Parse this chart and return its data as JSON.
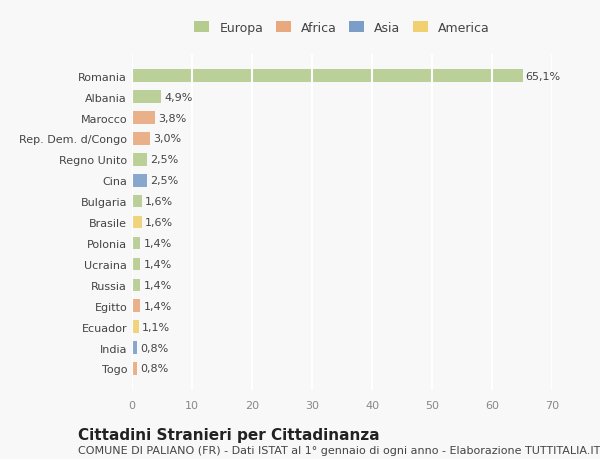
{
  "countries": [
    "Romania",
    "Albania",
    "Marocco",
    "Rep. Dem. d/Congo",
    "Regno Unito",
    "Cina",
    "Bulgaria",
    "Brasile",
    "Polonia",
    "Ucraina",
    "Russia",
    "Egitto",
    "Ecuador",
    "India",
    "Togo"
  ],
  "values": [
    65.1,
    4.9,
    3.8,
    3.0,
    2.5,
    2.5,
    1.6,
    1.6,
    1.4,
    1.4,
    1.4,
    1.4,
    1.1,
    0.8,
    0.8
  ],
  "labels": [
    "65,1%",
    "4,9%",
    "3,8%",
    "3,0%",
    "2,5%",
    "2,5%",
    "1,6%",
    "1,6%",
    "1,4%",
    "1,4%",
    "1,4%",
    "1,4%",
    "1,1%",
    "0,8%",
    "0,8%"
  ],
  "continents": [
    "Europa",
    "Europa",
    "Africa",
    "Africa",
    "Europa",
    "Asia",
    "Europa",
    "America",
    "Europa",
    "Europa",
    "Europa",
    "Africa",
    "America",
    "Asia",
    "Africa"
  ],
  "continent_colors": {
    "Europa": "#b5cc8e",
    "Africa": "#e8a97e",
    "Asia": "#7b9ec9",
    "America": "#f0d070"
  },
  "legend_order": [
    "Europa",
    "Africa",
    "Asia",
    "America"
  ],
  "title": "Cittadini Stranieri per Cittadinanza",
  "subtitle": "COMUNE DI PALIANO (FR) - Dati ISTAT al 1° gennaio di ogni anno - Elaborazione TUTTITALIA.IT",
  "xlim": [
    0,
    70
  ],
  "xticks": [
    0,
    10,
    20,
    30,
    40,
    50,
    60,
    70
  ],
  "background_color": "#f8f8f8",
  "grid_color": "#ffffff",
  "bar_height": 0.6,
  "title_fontsize": 11,
  "subtitle_fontsize": 8,
  "label_fontsize": 8,
  "tick_fontsize": 8,
  "legend_fontsize": 9
}
